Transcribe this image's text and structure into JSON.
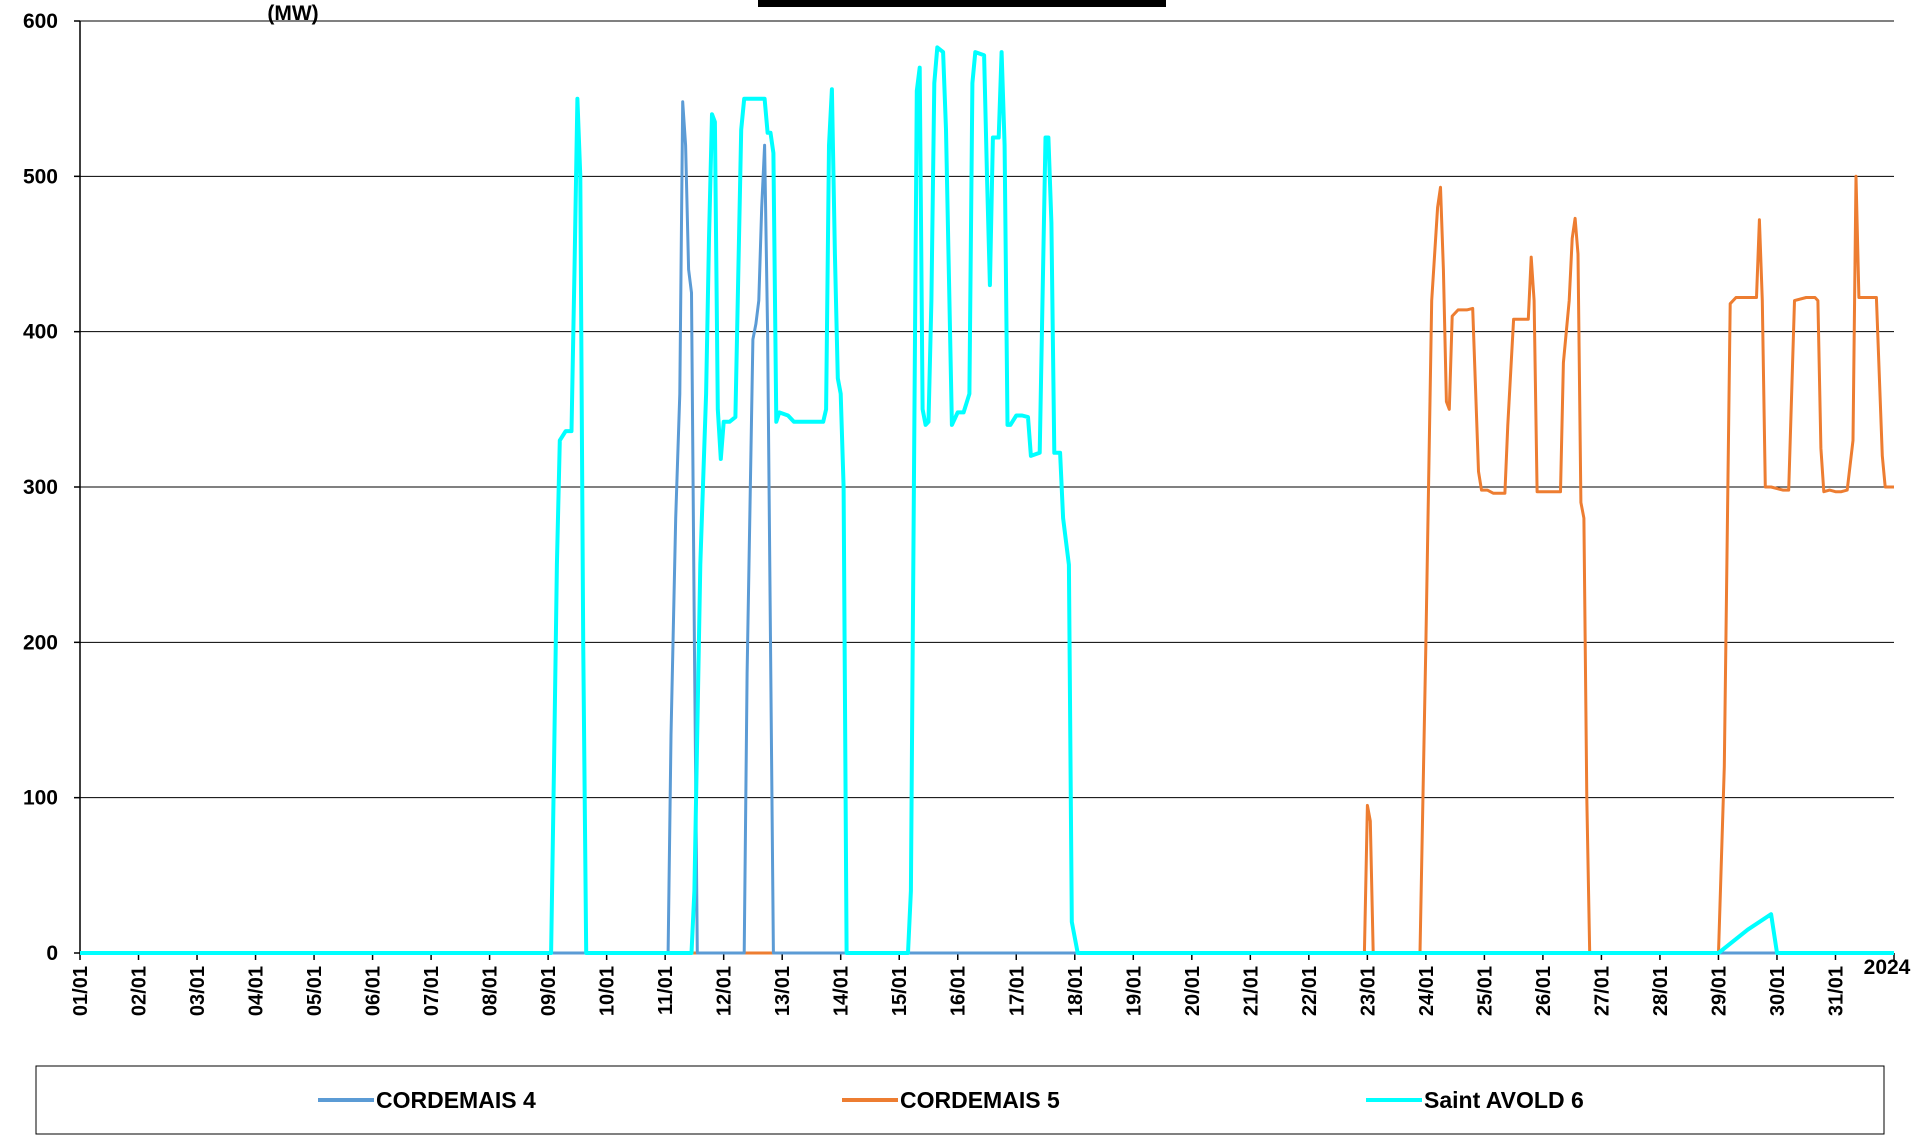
{
  "chart_data": {
    "type": "line",
    "title": "",
    "ylabel": "(MW)",
    "xlabel": "",
    "year_label": "2024",
    "ylim": [
      0,
      600
    ],
    "yticks": [
      0,
      100,
      200,
      300,
      400,
      500,
      600
    ],
    "xlim": [
      1,
      32
    ],
    "x_unit": "day of January 2024",
    "x_tick_labels": [
      "01/01",
      "02/01",
      "03/01",
      "04/01",
      "05/01",
      "06/01",
      "07/01",
      "08/01",
      "09/01",
      "10/01",
      "11/01",
      "12/01",
      "13/01",
      "14/01",
      "15/01",
      "16/01",
      "17/01",
      "18/01",
      "19/01",
      "20/01",
      "21/01",
      "22/01",
      "23/01",
      "24/01",
      "25/01",
      "26/01",
      "27/01",
      "28/01",
      "29/01",
      "30/01",
      "31/01"
    ],
    "grid": true,
    "legend_position": "bottom",
    "series": [
      {
        "name": "CORDEMAIS 4",
        "color": "#5b9bd5",
        "points": [
          [
            1,
            0
          ],
          [
            11.05,
            0
          ],
          [
            11.1,
            140
          ],
          [
            11.18,
            280
          ],
          [
            11.25,
            360
          ],
          [
            11.3,
            548
          ],
          [
            11.35,
            520
          ],
          [
            11.4,
            440
          ],
          [
            11.45,
            425
          ],
          [
            11.5,
            200
          ],
          [
            11.55,
            0
          ],
          [
            12.35,
            0
          ],
          [
            12.4,
            180
          ],
          [
            12.5,
            395
          ],
          [
            12.55,
            405
          ],
          [
            12.6,
            420
          ],
          [
            12.65,
            480
          ],
          [
            12.7,
            520
          ],
          [
            12.75,
            400
          ],
          [
            12.8,
            200
          ],
          [
            12.85,
            0
          ],
          [
            32,
            0
          ]
        ]
      },
      {
        "name": "CORDEMAIS 5",
        "color": "#ed7d31",
        "points": [
          [
            1,
            0
          ],
          [
            22.95,
            0
          ],
          [
            23.0,
            95
          ],
          [
            23.05,
            85
          ],
          [
            23.1,
            0
          ],
          [
            23.9,
            0
          ],
          [
            24.0,
            200
          ],
          [
            24.1,
            420
          ],
          [
            24.2,
            480
          ],
          [
            24.25,
            493
          ],
          [
            24.3,
            440
          ],
          [
            24.35,
            355
          ],
          [
            24.4,
            350
          ],
          [
            24.45,
            410
          ],
          [
            24.55,
            414
          ],
          [
            24.7,
            414
          ],
          [
            24.8,
            415
          ],
          [
            24.9,
            310
          ],
          [
            24.95,
            298
          ],
          [
            25.05,
            298
          ],
          [
            25.15,
            296
          ],
          [
            25.35,
            296
          ],
          [
            25.4,
            340
          ],
          [
            25.5,
            408
          ],
          [
            25.7,
            408
          ],
          [
            25.75,
            408
          ],
          [
            25.8,
            448
          ],
          [
            25.85,
            420
          ],
          [
            25.9,
            297
          ],
          [
            26.05,
            297
          ],
          [
            26.15,
            297
          ],
          [
            26.3,
            297
          ],
          [
            26.35,
            380
          ],
          [
            26.45,
            420
          ],
          [
            26.5,
            460
          ],
          [
            26.55,
            473
          ],
          [
            26.6,
            450
          ],
          [
            26.65,
            290
          ],
          [
            26.7,
            280
          ],
          [
            26.75,
            100
          ],
          [
            26.8,
            0
          ],
          [
            29.0,
            0
          ],
          [
            29.1,
            120
          ],
          [
            29.2,
            418
          ],
          [
            29.3,
            422
          ],
          [
            29.5,
            422
          ],
          [
            29.65,
            422
          ],
          [
            29.7,
            472
          ],
          [
            29.75,
            420
          ],
          [
            29.8,
            300
          ],
          [
            29.9,
            300
          ],
          [
            30.1,
            298
          ],
          [
            30.2,
            298
          ],
          [
            30.3,
            420
          ],
          [
            30.5,
            422
          ],
          [
            30.65,
            422
          ],
          [
            30.7,
            420
          ],
          [
            30.75,
            325
          ],
          [
            30.8,
            297
          ],
          [
            30.9,
            298
          ],
          [
            31.0,
            297
          ],
          [
            31.1,
            297
          ],
          [
            31.2,
            298
          ],
          [
            31.3,
            330
          ],
          [
            31.35,
            500
          ],
          [
            31.4,
            422
          ],
          [
            31.55,
            422
          ],
          [
            31.7,
            422
          ],
          [
            31.8,
            320
          ],
          [
            31.85,
            300
          ],
          [
            32.0,
            300
          ]
        ]
      },
      {
        "name": "Saint AVOLD 6",
        "color": "#00ffff",
        "points": [
          [
            1,
            0
          ],
          [
            9.05,
            0
          ],
          [
            9.1,
            120
          ],
          [
            9.15,
            250
          ],
          [
            9.2,
            330
          ],
          [
            9.3,
            336
          ],
          [
            9.4,
            336
          ],
          [
            9.45,
            440
          ],
          [
            9.5,
            550
          ],
          [
            9.55,
            500
          ],
          [
            9.6,
            200
          ],
          [
            9.65,
            0
          ],
          [
            11.45,
            0
          ],
          [
            11.5,
            40
          ],
          [
            11.6,
            250
          ],
          [
            11.7,
            360
          ],
          [
            11.75,
            460
          ],
          [
            11.8,
            540
          ],
          [
            11.85,
            535
          ],
          [
            11.9,
            350
          ],
          [
            11.95,
            318
          ],
          [
            12.0,
            342
          ],
          [
            12.1,
            342
          ],
          [
            12.2,
            345
          ],
          [
            12.3,
            530
          ],
          [
            12.35,
            550
          ],
          [
            12.55,
            550
          ],
          [
            12.7,
            550
          ],
          [
            12.75,
            528
          ],
          [
            12.8,
            528
          ],
          [
            12.85,
            515
          ],
          [
            12.9,
            342
          ],
          [
            12.95,
            348
          ],
          [
            13.1,
            346
          ],
          [
            13.2,
            342
          ],
          [
            13.3,
            342
          ],
          [
            13.5,
            342
          ],
          [
            13.7,
            342
          ],
          [
            13.75,
            350
          ],
          [
            13.8,
            520
          ],
          [
            13.85,
            556
          ],
          [
            13.9,
            450
          ],
          [
            13.95,
            370
          ],
          [
            14.0,
            360
          ],
          [
            14.05,
            300
          ],
          [
            14.1,
            0
          ],
          [
            15.15,
            0
          ],
          [
            15.2,
            40
          ],
          [
            15.25,
            300
          ],
          [
            15.3,
            555
          ],
          [
            15.35,
            570
          ],
          [
            15.4,
            350
          ],
          [
            15.45,
            340
          ],
          [
            15.5,
            342
          ],
          [
            15.55,
            420
          ],
          [
            15.6,
            560
          ],
          [
            15.65,
            583
          ],
          [
            15.75,
            580
          ],
          [
            15.8,
            530
          ],
          [
            15.9,
            340
          ],
          [
            16.0,
            348
          ],
          [
            16.1,
            348
          ],
          [
            16.2,
            360
          ],
          [
            16.25,
            560
          ],
          [
            16.3,
            580
          ],
          [
            16.45,
            578
          ],
          [
            16.5,
            500
          ],
          [
            16.55,
            430
          ],
          [
            16.6,
            525
          ],
          [
            16.7,
            525
          ],
          [
            16.75,
            580
          ],
          [
            16.8,
            520
          ],
          [
            16.85,
            340
          ],
          [
            16.9,
            340
          ],
          [
            17.0,
            346
          ],
          [
            17.1,
            346
          ],
          [
            17.2,
            345
          ],
          [
            17.25,
            320
          ],
          [
            17.4,
            322
          ],
          [
            17.5,
            525
          ],
          [
            17.55,
            525
          ],
          [
            17.6,
            470
          ],
          [
            17.65,
            322
          ],
          [
            17.75,
            322
          ],
          [
            17.8,
            280
          ],
          [
            17.9,
            250
          ],
          [
            17.95,
            20
          ],
          [
            18.05,
            0
          ],
          [
            29.0,
            0
          ],
          [
            29.5,
            15
          ],
          [
            29.9,
            25
          ],
          [
            30.0,
            0
          ],
          [
            32,
            0
          ]
        ]
      }
    ]
  }
}
